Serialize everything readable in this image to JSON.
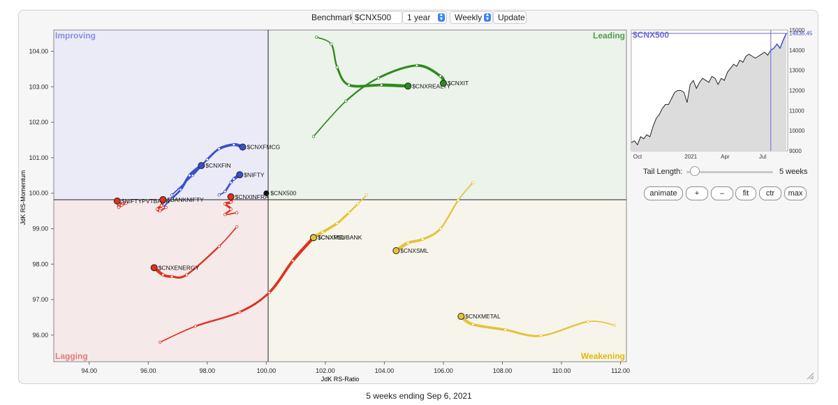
{
  "header": {
    "benchmark_label": "Benchmark:",
    "benchmark_value": "$CNX500",
    "period": "1 year",
    "interval": "Weekly",
    "update_label": "Update"
  },
  "footer": {
    "caption": "5 weeks ending Sep 6, 2021"
  },
  "colors": {
    "improving": "#6f73cc",
    "leading": "#3d8f35",
    "weakening": "#e0b400",
    "lagging": "#d04848",
    "blue": "#3a4fd0",
    "green": "#2f8a1e",
    "yellow": "#e5c238",
    "red": "#e0301f"
  },
  "chart_data": [
    {
      "type": "scatter",
      "title": "",
      "xlabel": "JdK RS-Ratio",
      "ylabel": "JdK RS-Momentum",
      "xlim": [
        92.8,
        112.2
      ],
      "ylim": [
        95.25,
        104.6
      ],
      "xticks": [
        "94.00",
        "96.00",
        "98.00",
        "100.00",
        "102.00",
        "104.00",
        "106.00",
        "108.00",
        "110.00",
        "112.00"
      ],
      "yticks": [
        "96.00",
        "97.00",
        "98.00",
        "99.00",
        "100.00",
        "101.00",
        "102.00",
        "103.00",
        "104.00"
      ],
      "quadrants": [
        "Improving",
        "Leading",
        "Weakening",
        "Lagging"
      ],
      "center": {
        "name": "$CNX500",
        "x": 100.0,
        "y": 100.0
      },
      "series": [
        {
          "name": "$CNXREALTY",
          "color": "green",
          "points": [
            [
              101.7,
              104.4
            ],
            [
              102.2,
              104.2
            ],
            [
              102.4,
              103.55
            ],
            [
              102.8,
              103.05
            ],
            [
              103.9,
              103.05
            ],
            [
              104.8,
              103.02
            ]
          ]
        },
        {
          "name": "$CNXIT",
          "color": "green",
          "points": [
            [
              101.6,
              101.6
            ],
            [
              102.7,
              102.6
            ],
            [
              103.8,
              103.25
            ],
            [
              105.1,
              103.6
            ],
            [
              105.9,
              103.3
            ],
            [
              106.0,
              103.1
            ]
          ]
        },
        {
          "name": "$CNXFMCG",
          "color": "blue",
          "points": [
            [
              96.8,
              99.95
            ],
            [
              97.5,
              100.5
            ],
            [
              98.0,
              100.95
            ],
            [
              98.4,
              101.25
            ],
            [
              98.9,
              101.37
            ],
            [
              99.2,
              101.3
            ]
          ]
        },
        {
          "name": "$CNXFIN",
          "color": "blue",
          "points": [
            [
              96.5,
              99.6
            ],
            [
              96.8,
              99.85
            ],
            [
              97.1,
              100.1
            ],
            [
              97.4,
              100.5
            ],
            [
              97.8,
              100.78
            ]
          ]
        },
        {
          "name": "$NIFTY",
          "color": "blue",
          "points": [
            [
              98.4,
              99.95
            ],
            [
              98.6,
              100.05
            ],
            [
              98.8,
              100.3
            ],
            [
              98.9,
              100.4
            ],
            [
              99.1,
              100.52
            ]
          ]
        },
        {
          "name": "$NIFTYPVTBANK",
          "color": "red",
          "points": [
            [
              95.25,
              99.72
            ],
            [
              95.0,
              99.6
            ],
            [
              95.0,
              99.7
            ],
            [
              95.1,
              99.66
            ],
            [
              94.95,
              99.78
            ]
          ]
        },
        {
          "name": "$BANKNIFTY",
          "color": "red",
          "points": [
            [
              96.6,
              99.6
            ],
            [
              96.4,
              99.5
            ],
            [
              96.3,
              99.55
            ],
            [
              96.45,
              99.65
            ],
            [
              96.5,
              99.82
            ]
          ]
        },
        {
          "name": "$CNXINFRA",
          "color": "red",
          "points": [
            [
              99.0,
              99.45
            ],
            [
              98.6,
              99.4
            ],
            [
              98.8,
              99.55
            ],
            [
              98.6,
              99.7
            ],
            [
              98.8,
              99.75
            ],
            [
              98.8,
              99.9
            ]
          ]
        },
        {
          "name": "$CNXENERGY",
          "color": "red",
          "points": [
            [
              99.0,
              99.05
            ],
            [
              98.4,
              98.5
            ],
            [
              97.3,
              97.7
            ],
            [
              96.8,
              97.65
            ],
            [
              96.5,
              97.7
            ],
            [
              96.2,
              97.9
            ]
          ]
        },
        {
          "name": "$CNXPSUBANK",
          "color": "red",
          "points": [
            [
              96.4,
              95.8
            ],
            [
              97.6,
              96.25
            ],
            [
              99.1,
              96.65
            ],
            [
              100.1,
              97.2
            ],
            [
              100.9,
              98.1
            ],
            [
              101.6,
              98.75
            ]
          ]
        },
        {
          "name": "$CNXMID",
          "color": "yellow",
          "points": [
            [
              103.4,
              99.95
            ],
            [
              103.1,
              99.7
            ],
            [
              102.8,
              99.45
            ],
            [
              102.4,
              99.15
            ],
            [
              101.9,
              98.9
            ],
            [
              101.6,
              98.75
            ]
          ]
        },
        {
          "name": "$CNXSML",
          "color": "yellow",
          "points": [
            [
              107.0,
              100.3
            ],
            [
              106.5,
              99.8
            ],
            [
              105.9,
              99.0
            ],
            [
              105.3,
              98.7
            ],
            [
              104.8,
              98.6
            ],
            [
              104.4,
              98.38
            ]
          ]
        },
        {
          "name": "$CNXMETAL",
          "color": "yellow",
          "points": [
            [
              111.8,
              96.28
            ],
            [
              110.9,
              96.38
            ],
            [
              109.3,
              95.98
            ],
            [
              108.1,
              96.15
            ],
            [
              107.0,
              96.3
            ],
            [
              106.6,
              96.53
            ]
          ]
        }
      ]
    },
    {
      "type": "line",
      "title": "$CNX500",
      "last_value": "14836.45",
      "ylim": [
        9000,
        15000
      ],
      "xticks": [
        "Oct",
        "2021",
        "Apr",
        "Jul"
      ],
      "yticks": [
        "9000",
        "10000",
        "11000",
        "12000",
        "13000",
        "14000",
        "15000"
      ],
      "values": [
        9400,
        9500,
        9300,
        9700,
        9600,
        9800,
        9700,
        10200,
        10600,
        10800,
        11100,
        11300,
        11300,
        11600,
        11900,
        12000,
        12000,
        11900,
        11400,
        12300,
        12500,
        12100,
        12400,
        12600,
        12500,
        12400,
        12700,
        12600,
        12300,
        12600,
        12500,
        12900,
        13100,
        13300,
        13200,
        13500,
        13400,
        13700,
        13800,
        13700,
        13600,
        13700,
        13800,
        13900,
        13750,
        14000,
        14100,
        14300,
        14100,
        14500,
        14836
      ]
    }
  ],
  "tail": {
    "label": "Tail Length:",
    "value": "5 weeks",
    "fraction": 0.1
  },
  "buttons": {
    "animate": "animate",
    "plus": "+",
    "minus": "–",
    "fit": "fit",
    "ctr": "ctr",
    "max": "max"
  }
}
